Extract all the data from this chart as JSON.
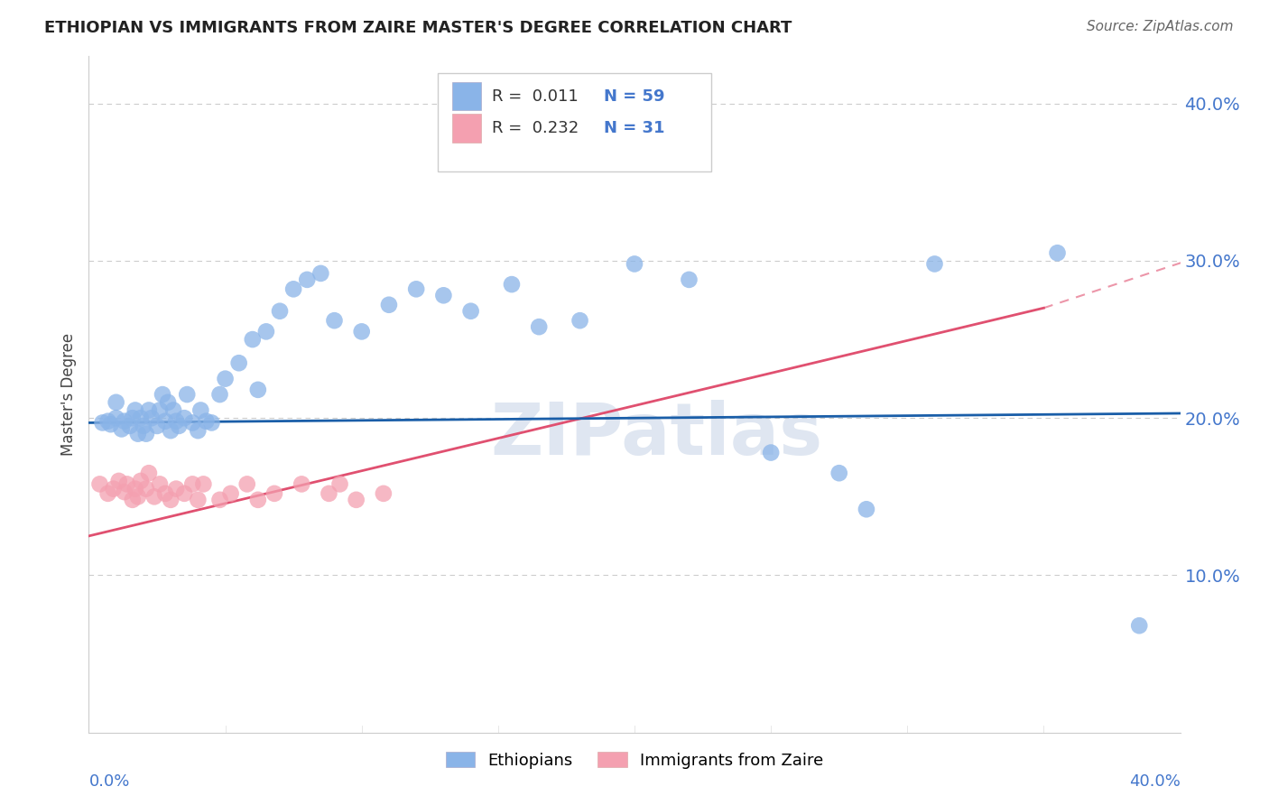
{
  "title": "ETHIOPIAN VS IMMIGRANTS FROM ZAIRE MASTER'S DEGREE CORRELATION CHART",
  "source": "Source: ZipAtlas.com",
  "ylabel": "Master's Degree",
  "ytick_labels": [
    "40.0%",
    "30.0%",
    "20.0%",
    "10.0%"
  ],
  "ytick_values": [
    0.4,
    0.3,
    0.2,
    0.1
  ],
  "xlim": [
    0.0,
    0.4
  ],
  "ylim": [
    0.0,
    0.42
  ],
  "legend1_R": "0.011",
  "legend1_N": "59",
  "legend2_R": "0.232",
  "legend2_N": "31",
  "blue_color": "#8ab4e8",
  "pink_color": "#f4a0b0",
  "trend_blue": "#1a5ea8",
  "trend_pink": "#e05070",
  "trend_blue_start": 0.197,
  "trend_blue_end": 0.202,
  "trend_pink_start": 0.125,
  "trend_pink_end": 0.27,
  "trend_pink_dashed_end": 0.31,
  "watermark": "ZIPatlas",
  "ethiopians_x": [
    0.005,
    0.008,
    0.01,
    0.01,
    0.01,
    0.012,
    0.015,
    0.015,
    0.015,
    0.018,
    0.018,
    0.02,
    0.02,
    0.02,
    0.022,
    0.022,
    0.025,
    0.025,
    0.025,
    0.028,
    0.028,
    0.03,
    0.03,
    0.032,
    0.035,
    0.035,
    0.038,
    0.04,
    0.04,
    0.042,
    0.045,
    0.048,
    0.05,
    0.055,
    0.06,
    0.062,
    0.065,
    0.07,
    0.075,
    0.08,
    0.085,
    0.09,
    0.1,
    0.105,
    0.11,
    0.12,
    0.125,
    0.13,
    0.14,
    0.15,
    0.16,
    0.18,
    0.2,
    0.22,
    0.25,
    0.28,
    0.29,
    0.31,
    0.38
  ],
  "ethiopians_y": [
    0.192,
    0.195,
    0.19,
    0.2,
    0.215,
    0.185,
    0.195,
    0.2,
    0.21,
    0.19,
    0.2,
    0.188,
    0.195,
    0.205,
    0.185,
    0.2,
    0.195,
    0.205,
    0.215,
    0.195,
    0.21,
    0.19,
    0.205,
    0.195,
    0.2,
    0.215,
    0.195,
    0.19,
    0.205,
    0.2,
    0.195,
    0.215,
    0.22,
    0.23,
    0.245,
    0.215,
    0.25,
    0.265,
    0.28,
    0.285,
    0.29,
    0.26,
    0.25,
    0.27,
    0.255,
    0.28,
    0.26,
    0.275,
    0.265,
    0.285,
    0.255,
    0.26,
    0.295,
    0.285,
    0.175,
    0.165,
    0.14,
    0.295,
    0.065
  ],
  "zaire_x": [
    0.005,
    0.008,
    0.01,
    0.012,
    0.015,
    0.015,
    0.018,
    0.018,
    0.02,
    0.02,
    0.022,
    0.025,
    0.025,
    0.028,
    0.03,
    0.032,
    0.035,
    0.038,
    0.04,
    0.042,
    0.045,
    0.05,
    0.055,
    0.06,
    0.065,
    0.07,
    0.08,
    0.09,
    0.095,
    0.1,
    0.11
  ],
  "zaire_y": [
    0.155,
    0.15,
    0.14,
    0.155,
    0.145,
    0.16,
    0.148,
    0.155,
    0.142,
    0.15,
    0.16,
    0.145,
    0.155,
    0.15,
    0.148,
    0.155,
    0.15,
    0.155,
    0.148,
    0.155,
    0.14,
    0.15,
    0.148,
    0.155,
    0.145,
    0.15,
    0.155,
    0.15,
    0.155,
    0.148,
    0.15
  ]
}
